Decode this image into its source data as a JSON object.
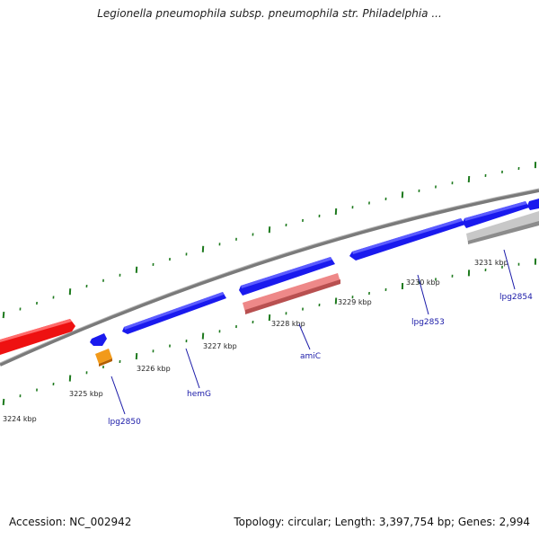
{
  "title": "Legionella pneumophila subsp. pneumophila str. Philadelphia ...",
  "footer": {
    "accession": "Accession: NC_002942",
    "summary": "Topology: circular; Length: 3,397,754 bp; Genes: 2,994"
  },
  "kbp_labels": [
    "3224 kbp",
    "3225 kbp",
    "3226 kbp",
    "3227 kbp",
    "3228 kbp",
    "3229 kbp",
    "3230 kbp",
    "3231 kbp"
  ],
  "genes": [
    {
      "name": "lpg2850",
      "color": "#f29a1a"
    },
    {
      "name": "hemG",
      "color": "#1a1aee"
    },
    {
      "name": "amiC",
      "color": "#ee8888"
    },
    {
      "name": "lpg2853",
      "color": "#1a1aee"
    },
    {
      "name": "lpg2854",
      "color": "#1a1aee"
    }
  ],
  "colors": {
    "backbone": "#8a8a8a",
    "tick": "#1e7a1e",
    "forward_red": "#ee1111",
    "forward_blue": "#1a1aee",
    "reverse_grey": "#bbbbbb"
  }
}
